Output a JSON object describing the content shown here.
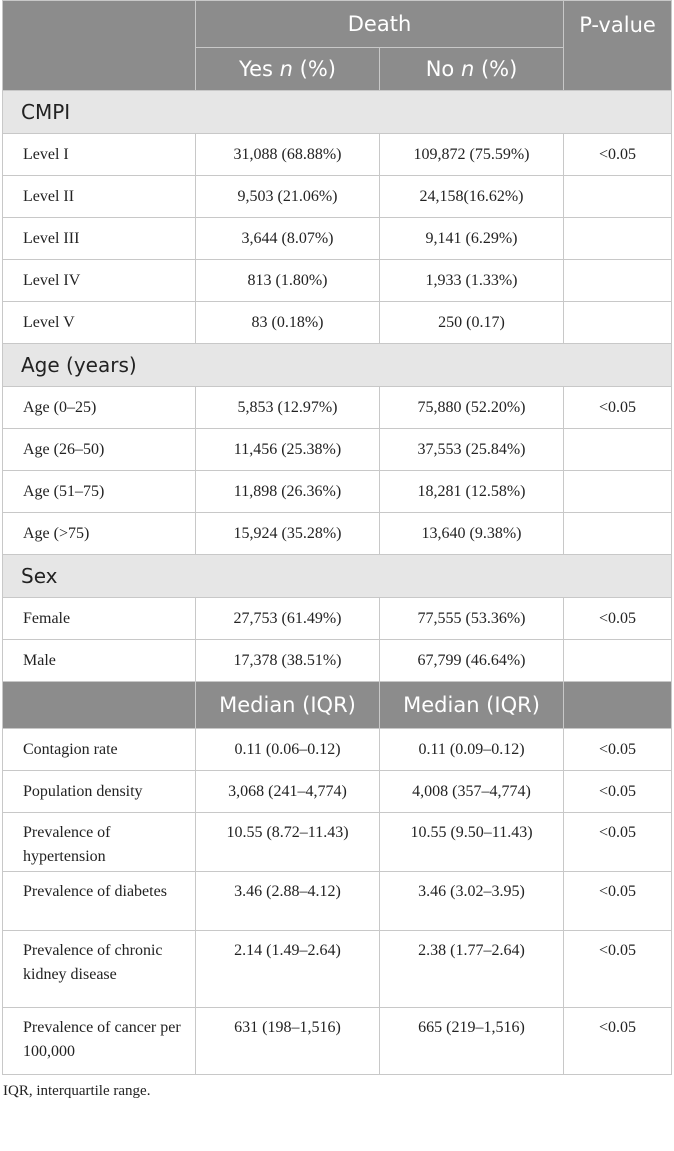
{
  "header": {
    "death": "Death",
    "p_value": "P-value",
    "yes_label": "Yes",
    "no_label": "No",
    "n_italic": "n",
    "pct": "(%)"
  },
  "sections": [
    {
      "title": "CMPI",
      "rows": [
        {
          "label": "Level I",
          "yes": "31,088 (68.88%)",
          "no": "109,872 (75.59%)",
          "p": "<0.05"
        },
        {
          "label": "Level II",
          "yes": "9,503 (21.06%)",
          "no": "24,158(16.62%)",
          "p": ""
        },
        {
          "label": "Level III",
          "yes": "3,644 (8.07%)",
          "no": "9,141 (6.29%)",
          "p": ""
        },
        {
          "label": "Level IV",
          "yes": "813 (1.80%)",
          "no": "1,933 (1.33%)",
          "p": ""
        },
        {
          "label": "Level V",
          "yes": "83 (0.18%)",
          "no": "250 (0.17)",
          "p": ""
        }
      ]
    },
    {
      "title": "Age (years)",
      "rows": [
        {
          "label": "Age (0–25)",
          "yes": "5,853 (12.97%)",
          "no": "75,880 (52.20%)",
          "p": "<0.05"
        },
        {
          "label": "Age (26–50)",
          "yes": "11,456 (25.38%)",
          "no": "37,553 (25.84%)",
          "p": ""
        },
        {
          "label": "Age (51–75)",
          "yes": "11,898 (26.36%)",
          "no": "18,281 (12.58%)",
          "p": ""
        },
        {
          "label": "Age (>75)",
          "yes": "15,924 (35.28%)",
          "no": "13,640 (9.38%)",
          "p": ""
        }
      ]
    },
    {
      "title": "Sex",
      "rows": [
        {
          "label": "Female",
          "yes": "27,753 (61.49%)",
          "no": "77,555 (53.36%)",
          "p": "<0.05"
        },
        {
          "label": "Male",
          "yes": "17,378 (38.51%)",
          "no": "67,799 (46.64%)",
          "p": ""
        }
      ]
    }
  ],
  "median_header": {
    "yes": "Median (IQR)",
    "no": "Median (IQR)"
  },
  "median_rows": [
    {
      "label": "Contagion rate",
      "yes": "0.11 (0.06–0.12)",
      "no": "0.11 (0.09–0.12)",
      "p": "<0.05"
    },
    {
      "label": "Population density",
      "yes": "3,068 (241–4,774)",
      "no": "4,008 (357–4,774)",
      "p": "<0.05"
    },
    {
      "label": "Prevalence of hypertension",
      "yes": "10.55 (8.72–11.43)",
      "no": "10.55 (9.50–11.43)",
      "p": "<0.05"
    },
    {
      "label": "Prevalence of diabetes",
      "yes": "3.46 (2.88–4.12)",
      "no": "3.46 (3.02–3.95)",
      "p": "<0.05"
    },
    {
      "label": "Prevalence of chronic kidney disease",
      "yes": "2.14 (1.49–2.64)",
      "no": "2.38 (1.77–2.64)",
      "p": "<0.05"
    },
    {
      "label": "Prevalence of cancer per 100,000",
      "yes": "631 (198–1,516)",
      "no": "665 (219–1,516)",
      "p": "<0.05"
    }
  ],
  "footnote": "IQR, interquartile range."
}
